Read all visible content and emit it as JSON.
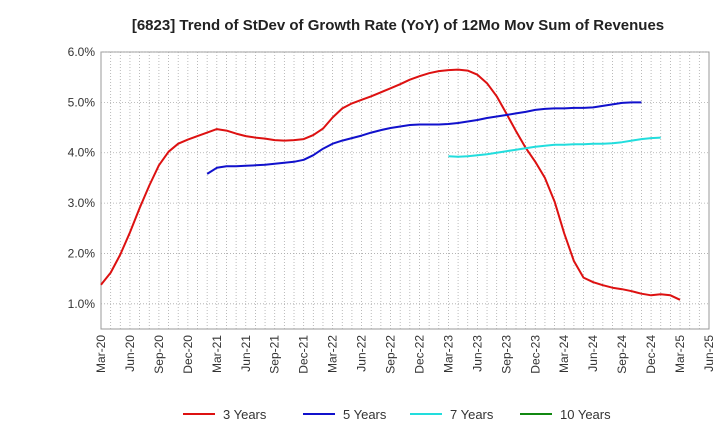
{
  "chart_data": {
    "type": "line",
    "title": "[6823]  Trend of StDev of Growth Rate (YoY) of 12Mo Mov Sum of Revenues",
    "xlabel": "",
    "ylabel": "",
    "ylim": [
      0.5,
      6.0
    ],
    "y_ticks": [
      1.0,
      2.0,
      3.0,
      4.0,
      5.0,
      6.0
    ],
    "y_tick_labels": [
      "1.0%",
      "2.0%",
      "3.0%",
      "4.0%",
      "5.0%",
      "6.0%"
    ],
    "x_ticks": [
      "Mar-20",
      "Jun-20",
      "Sep-20",
      "Dec-20",
      "Mar-21",
      "Jun-21",
      "Sep-21",
      "Dec-21",
      "Mar-22",
      "Jun-22",
      "Sep-22",
      "Dec-22",
      "Mar-23",
      "Jun-23",
      "Sep-23",
      "Dec-23",
      "Mar-24",
      "Jun-24",
      "Sep-24",
      "Dec-24",
      "Mar-25",
      "Jun-25"
    ],
    "grid": true,
    "legend_position": "bottom",
    "series": [
      {
        "name": "3 Years",
        "color": "#dd1111",
        "start_index": 0,
        "values": [
          1.38,
          1.62,
          1.98,
          2.42,
          2.9,
          3.35,
          3.75,
          4.02,
          4.18,
          4.26,
          4.33,
          4.4,
          4.47,
          4.44,
          4.38,
          4.33,
          4.3,
          4.28,
          4.25,
          4.24,
          4.25,
          4.27,
          4.35,
          4.48,
          4.7,
          4.88,
          4.98,
          5.05,
          5.12,
          5.2,
          5.28,
          5.36,
          5.45,
          5.52,
          5.58,
          5.62,
          5.64,
          5.65,
          5.63,
          5.55,
          5.38,
          5.12,
          4.78,
          4.43,
          4.1,
          3.82,
          3.5,
          3.03,
          2.4,
          1.85,
          1.52,
          1.43,
          1.37,
          1.32,
          1.29,
          1.25,
          1.2,
          1.17,
          1.19,
          1.17,
          1.08
        ]
      },
      {
        "name": "5 Years",
        "color": "#1111cc",
        "start_index": 11,
        "values": [
          3.58,
          3.7,
          3.73,
          3.73,
          3.74,
          3.75,
          3.76,
          3.78,
          3.8,
          3.82,
          3.86,
          3.95,
          4.08,
          4.18,
          4.24,
          4.29,
          4.34,
          4.4,
          4.45,
          4.49,
          4.52,
          4.55,
          4.56,
          4.56,
          4.56,
          4.57,
          4.59,
          4.62,
          4.65,
          4.69,
          4.72,
          4.75,
          4.78,
          4.81,
          4.85,
          4.87,
          4.88,
          4.88,
          4.89,
          4.89,
          4.9,
          4.93,
          4.96,
          4.99,
          5.0,
          5.0
        ]
      },
      {
        "name": "7 Years",
        "color": "#22dddd",
        "start_index": 36,
        "values": [
          3.93,
          3.92,
          3.93,
          3.95,
          3.97,
          4.0,
          4.03,
          4.06,
          4.09,
          4.12,
          4.14,
          4.16,
          4.16,
          4.17,
          4.17,
          4.18,
          4.18,
          4.19,
          4.21,
          4.24,
          4.27,
          4.29,
          4.3
        ]
      },
      {
        "name": "10 Years",
        "color": "#118811",
        "start_index": 0,
        "values": []
      }
    ]
  }
}
